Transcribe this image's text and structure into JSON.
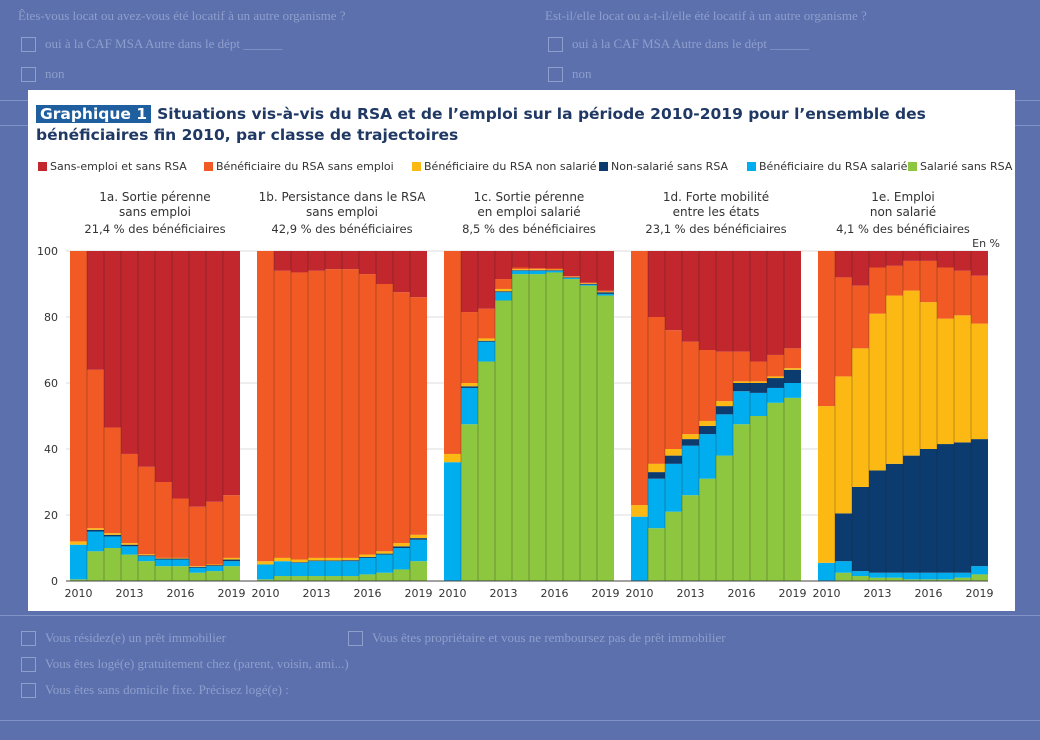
{
  "background_form": {
    "lines": [
      {
        "text": "Êtes-vous locat ou avez-vous été locatif à un autre organisme ?",
        "left": 18,
        "top": 8
      },
      {
        "text": "Est-il/elle locat ou a-t-il/elle été locatif à un autre organisme ?",
        "left": 545,
        "top": 8
      },
      {
        "text": "oui      à la CAF      MSA      Autre    dans le dépt ______",
        "left": 45,
        "top": 36
      },
      {
        "text": "oui      à la CAF      MSA      Autre    dans le dépt ______",
        "left": 572,
        "top": 36
      },
      {
        "text": "non",
        "left": 45,
        "top": 66
      },
      {
        "text": "non",
        "left": 572,
        "top": 66
      },
      {
        "text": "Vous résidez(e) un prêt immobilier",
        "left": 45,
        "top": 630
      },
      {
        "text": "Vous êtes propriétaire et vous ne remboursez pas de prêt immobilier",
        "left": 372,
        "top": 630
      },
      {
        "text": "Vous êtes logé(e) gratuitement chez (parent, voisin, ami...)",
        "left": 45,
        "top": 656
      },
      {
        "text": "Vous êtes sans domicile fixe. Précisez logé(e) :",
        "left": 45,
        "top": 682
      }
    ]
  },
  "chart_data": {
    "type": "stacked-bar",
    "title_badge": "Graphique 1",
    "title": "Situations vis-à-vis du RSA et de l’emploi sur la période 2010-2019 pour l’ensemble des bénéficiaires fin 2010, par classe de trajectoires",
    "unit_label": "En %",
    "ylim": [
      0,
      100
    ],
    "yticks": [
      0,
      20,
      40,
      60,
      80,
      100
    ],
    "xtick_labels": [
      "2010",
      "2013",
      "2016",
      "2019"
    ],
    "years": [
      2010,
      2011,
      2012,
      2013,
      2014,
      2015,
      2016,
      2017,
      2018,
      2019
    ],
    "series": [
      {
        "name": "Salarié sans RSA",
        "color": "#8dc63f"
      },
      {
        "name": "Bénéficiaire du RSA salarié",
        "color": "#00aeef"
      },
      {
        "name": "Non-salarié sans RSA",
        "color": "#0b3b6f"
      },
      {
        "name": "Bénéficiaire du RSA non salarié",
        "color": "#fdb913"
      },
      {
        "name": "Bénéficiaire du RSA sans emploi",
        "color": "#f15a24"
      },
      {
        "name": "Sans-emploi et sans RSA",
        "color": "#c1272d"
      }
    ],
    "legend_order": [
      "Sans-emploi et sans RSA",
      "Bénéficiaire du RSA sans emploi",
      "Bénéficiaire du RSA non salarié",
      "Non-salarié sans RSA",
      "Bénéficiaire du RSA salarié",
      "Salarié sans RSA"
    ],
    "panels": [
      {
        "title_lines": [
          "1a. Sortie pérenne",
          "sans emploi"
        ],
        "subtitle": "21,4 % des bénéficiaires",
        "stacks": [
          [
            0.5,
            10.5,
            0,
            1,
            88,
            0
          ],
          [
            9,
            6,
            0.5,
            0.5,
            48,
            36
          ],
          [
            10,
            3.5,
            0.5,
            0.5,
            32,
            53.5
          ],
          [
            8,
            2.5,
            0.5,
            0.5,
            27,
            61.5
          ],
          [
            6,
            1.5,
            0.3,
            0.3,
            26.5,
            65.4
          ],
          [
            4.5,
            2,
            0.3,
            0.2,
            23,
            70
          ],
          [
            4.5,
            2,
            0.3,
            0.2,
            18,
            75
          ],
          [
            2.5,
            1.5,
            0.3,
            0.2,
            18,
            77.5
          ],
          [
            3,
            1.5,
            0.3,
            0.2,
            19,
            76
          ],
          [
            4.5,
            1.5,
            0.5,
            0.5,
            19,
            74
          ]
        ]
      },
      {
        "title_lines": [
          "1b. Persistance dans le RSA",
          "sans emploi"
        ],
        "subtitle": "42,9 % des bénéficiaires",
        "stacks": [
          [
            0.5,
            4.5,
            0,
            1,
            94,
            0
          ],
          [
            1.5,
            4.5,
            0,
            1,
            87,
            6
          ],
          [
            1.5,
            4,
            0.2,
            0.8,
            87,
            6.5
          ],
          [
            1.5,
            4.5,
            0.2,
            0.8,
            87,
            6
          ],
          [
            1.5,
            4.5,
            0.2,
            0.8,
            87.5,
            5.5
          ],
          [
            1.5,
            4.5,
            0.3,
            0.7,
            87.5,
            5.5
          ],
          [
            2,
            5,
            0.3,
            0.7,
            85,
            7
          ],
          [
            2.5,
            5.5,
            0.3,
            0.7,
            81,
            10
          ],
          [
            3.5,
            6.5,
            0.5,
            1,
            76,
            12.5
          ],
          [
            6,
            6.5,
            0.5,
            1,
            72,
            14
          ]
        ]
      },
      {
        "title_lines": [
          "1c. Sortie pérenne",
          "en emploi salarié"
        ],
        "subtitle": "8,5 % des bénéficiaires",
        "stacks": [
          [
            0,
            36,
            0,
            2.5,
            61.5,
            0
          ],
          [
            47.5,
            11,
            0.5,
            1,
            21.5,
            18.5
          ],
          [
            66.5,
            6,
            0.3,
            0.7,
            9,
            17.5
          ],
          [
            85,
            2.5,
            0.3,
            0.7,
            3,
            8.5
          ],
          [
            93,
            1,
            0.2,
            0.3,
            0.5,
            5
          ],
          [
            93,
            1,
            0.2,
            0.3,
            0.3,
            5.2
          ],
          [
            93.5,
            0.5,
            0.2,
            0.2,
            0.3,
            5.3
          ],
          [
            91.5,
            0.3,
            0.2,
            0.2,
            0.2,
            7.6
          ],
          [
            89.5,
            0.3,
            0.2,
            0.2,
            0.2,
            9.6
          ],
          [
            86.5,
            0.5,
            0.5,
            0.2,
            0.3,
            12
          ]
        ]
      },
      {
        "title_lines": [
          "1d. Forte mobilité",
          "entre les états"
        ],
        "subtitle": "23,1 % des bénéficiaires",
        "stacks": [
          [
            0,
            19.5,
            0,
            3.5,
            77,
            0
          ],
          [
            16,
            15,
            2,
            2.5,
            44.5,
            20
          ],
          [
            21,
            14.5,
            2.5,
            2,
            36,
            24
          ],
          [
            26,
            15,
            2,
            1.5,
            28,
            27.5
          ],
          [
            31,
            13.5,
            2.5,
            1.5,
            21.5,
            30
          ],
          [
            38,
            12.5,
            2.5,
            1.5,
            15,
            30.5
          ],
          [
            47.5,
            10,
            2.5,
            0.5,
            9,
            30.5
          ],
          [
            50,
            7,
            3,
            0.5,
            6,
            33.5
          ],
          [
            54,
            4.5,
            3,
            0.5,
            6.5,
            31.5
          ],
          [
            55.5,
            4.5,
            4,
            0.5,
            6,
            29.5
          ]
        ]
      },
      {
        "title_lines": [
          "1e. Emploi",
          "non salarié"
        ],
        "subtitle": "4,1 % des bénéficiaires",
        "stacks": [
          [
            0,
            5.5,
            0,
            47.5,
            47,
            0
          ],
          [
            2.5,
            3.5,
            14.5,
            41.5,
            30,
            8
          ],
          [
            1.5,
            1.5,
            25.5,
            42,
            19,
            10.5
          ],
          [
            1,
            1.5,
            31,
            47.5,
            14,
            5
          ],
          [
            1,
            1.5,
            33,
            51,
            9,
            4.5
          ],
          [
            0.5,
            2,
            35.5,
            50,
            9,
            3
          ],
          [
            0.5,
            2,
            37.5,
            44.5,
            12.5,
            3
          ],
          [
            0.5,
            2,
            39,
            38,
            15.5,
            5
          ],
          [
            1,
            1.5,
            39.5,
            38.5,
            13.5,
            6
          ],
          [
            2,
            2.5,
            38.5,
            35,
            14.5,
            7.5
          ]
        ]
      }
    ]
  }
}
